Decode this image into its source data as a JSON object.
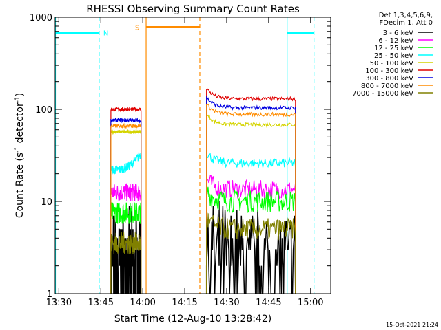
{
  "chart_data": {
    "type": "line",
    "title": "RHESSI Observing Summary Count Rates",
    "xlabel": "Start Time (12-Aug-10 13:28:42)",
    "ylabel_main": "Count Rate (s",
    "ylabel_sup1": "-1",
    "ylabel_mid": " detector",
    "ylabel_sup2": "-1",
    "ylabel_end": ")",
    "yscale": "log",
    "xlim": [
      13.478,
      15.12
    ],
    "ylim": [
      1,
      1000
    ],
    "x_ticks": [
      {
        "value": 13.5,
        "label": "13:30"
      },
      {
        "value": 13.75,
        "label": "13:45"
      },
      {
        "value": 14.0,
        "label": "14:00"
      },
      {
        "value": 14.25,
        "label": "14:15"
      },
      {
        "value": 14.5,
        "label": "14:30"
      },
      {
        "value": 14.75,
        "label": "14:45"
      },
      {
        "value": 15.0,
        "label": "15:00"
      }
    ],
    "y_ticks": [
      {
        "value": 1,
        "label": "1"
      },
      {
        "value": 10,
        "label": "10"
      },
      {
        "value": 100,
        "label": "100"
      },
      {
        "value": 1000,
        "label": "1000"
      }
    ],
    "legend_header": [
      "Det 1,3,4,5,6,9,",
      "FDecim 1, Att 0"
    ],
    "series": [
      {
        "name": "3 - 6 keV",
        "color": "#000000",
        "level_a": 1.8,
        "level_b": 2.0,
        "noise": 0.55
      },
      {
        "name": "6 - 12 keV",
        "color": "#ff00ff",
        "level_a": 12.5,
        "level_b": 13.5,
        "noise": 0.1
      },
      {
        "name": "12 - 25 keV",
        "color": "#00ff00",
        "level_a": 7.5,
        "level_b": 10.0,
        "noise": 0.12
      },
      {
        "name": "25 - 50 keV",
        "color": "#00ffff",
        "level_a": 22,
        "level_b": 26,
        "noise": 0.05
      },
      {
        "name": "50 - 100 keV",
        "color": "#d4d400",
        "level_a": 57,
        "level_b": 68,
        "noise": 0.02
      },
      {
        "name": "100 - 300 keV",
        "color": "#e00000",
        "level_a": 100,
        "level_b": 130,
        "noise": 0.02
      },
      {
        "name": "300 - 800 keV",
        "color": "#0000e0",
        "level_a": 76,
        "level_b": 104,
        "noise": 0.02
      },
      {
        "name": "800 - 7000 keV",
        "color": "#ff8c00",
        "level_a": 66,
        "level_b": 88,
        "noise": 0.02
      },
      {
        "name": "7000 - 15000 keV",
        "color": "#808000",
        "level_a": 3.5,
        "level_b": 5.0,
        "noise": 0.12
      }
    ],
    "data_intervals": [
      {
        "start": 13.81,
        "end": 13.99
      },
      {
        "start": 14.38,
        "end": 14.91
      }
    ],
    "flags": [
      {
        "label": "N",
        "color": "#00ffff",
        "dashed_at": [
          13.74,
          15.02
        ],
        "solid_at": [
          13.48,
          14.86
        ],
        "bar_segments": [
          [
            13.478,
            13.74
          ],
          [
            14.86,
            15.02
          ]
        ],
        "bar_value": 680
      },
      {
        "label": "S",
        "color": "#ff8c00",
        "dashed_at": [
          14.34
        ],
        "solid_at": [
          14.02
        ],
        "bar_segments": [
          [
            14.02,
            14.34
          ]
        ],
        "bar_value": 780
      }
    ],
    "timestamp": "15-Oct-2021 21:24"
  }
}
